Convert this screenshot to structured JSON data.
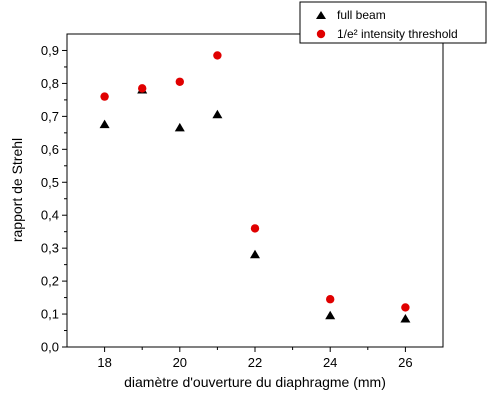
{
  "chart_data": {
    "type": "scatter",
    "title": "",
    "xlabel": "diamètre d'ouverture du diaphragme (mm)",
    "ylabel": "rapport de Strehl",
    "xlim": [
      17,
      27
    ],
    "ylim": [
      0.0,
      0.95
    ],
    "x_ticks": [
      18,
      20,
      22,
      24,
      26
    ],
    "x_tick_labels": [
      "18",
      "20",
      "22",
      "24",
      "26"
    ],
    "y_ticks": [
      0.0,
      0.1,
      0.2,
      0.3,
      0.4,
      0.5,
      0.6,
      0.7,
      0.8,
      0.9
    ],
    "y_tick_labels": [
      "0,0",
      "0,1",
      "0,2",
      "0,3",
      "0,4",
      "0,5",
      "0,6",
      "0,7",
      "0,8",
      "0,9"
    ],
    "grid": false,
    "legend_position": "top-right, outside plot",
    "series": [
      {
        "name": "full beam",
        "marker": "triangle",
        "color": "#000000",
        "x": [
          18,
          19,
          20,
          21,
          22,
          24,
          26
        ],
        "y": [
          0.675,
          0.78,
          0.665,
          0.705,
          0.28,
          0.095,
          0.085
        ]
      },
      {
        "name": "1/e² intensity threshold",
        "marker": "circle",
        "color": "#e00000",
        "x": [
          18,
          19,
          20,
          21,
          22,
          24,
          26
        ],
        "y": [
          0.76,
          0.785,
          0.805,
          0.885,
          0.36,
          0.145,
          0.12
        ]
      }
    ]
  }
}
